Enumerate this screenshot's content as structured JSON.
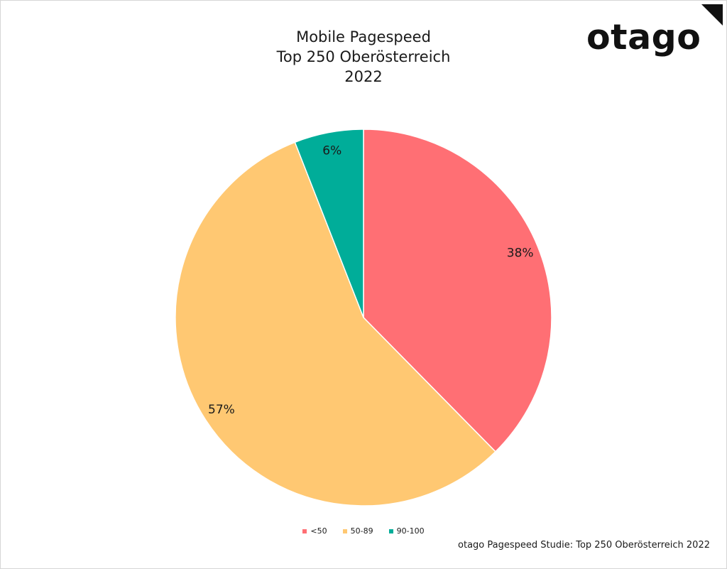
{
  "title_lines": [
    "Mobile Pagespeed",
    "Top 250 Oberösterreich",
    "2022"
  ],
  "logo_text": "otago",
  "source_text": "otago Pagespeed Studie: Top 250 Oberösterreich 2022",
  "chart_data": {
    "type": "pie",
    "title": "Mobile Pagespeed Top 250 Oberösterreich 2022",
    "categories": [
      "<50",
      "50-89",
      "90-100"
    ],
    "values": [
      38,
      57,
      6
    ],
    "labels": [
      "38%",
      "57%",
      "6%"
    ],
    "colors": [
      "#ff6f74",
      "#ffc872",
      "#00ad99"
    ],
    "start_angle_deg": 0,
    "direction": "clockwise",
    "legend_position": "bottom-center"
  }
}
